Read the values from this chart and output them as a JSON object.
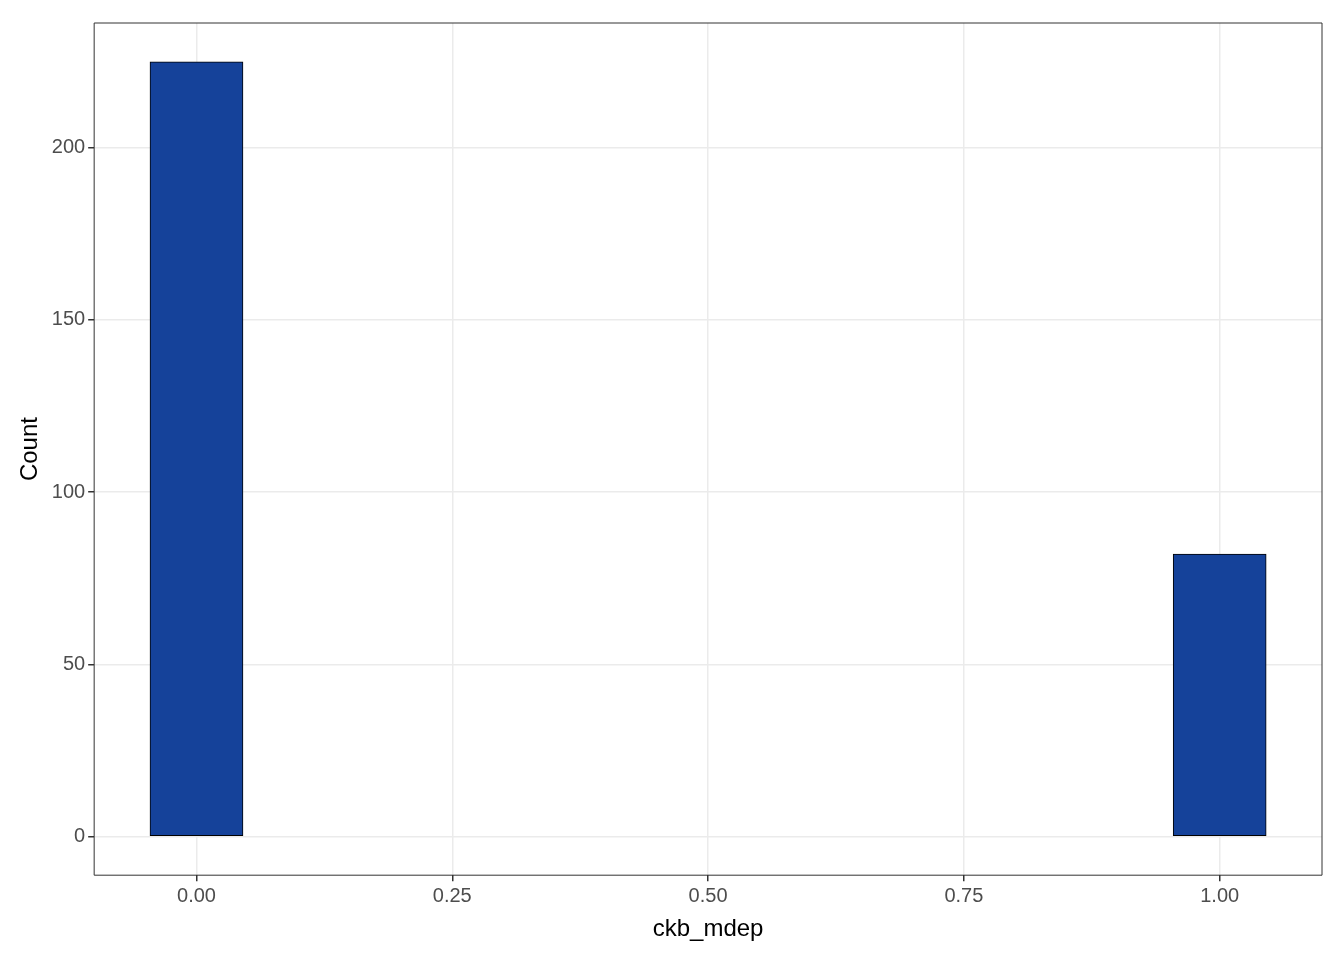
{
  "chart_data": {
    "type": "histogram",
    "xlabel": "ckb_mdep",
    "ylabel": "Count",
    "bins": [
      -0.0455,
      0.0455,
      0.1364,
      0.2273,
      0.3182,
      0.4091,
      0.5,
      0.5909,
      0.6818,
      0.7727,
      0.8636,
      0.9545,
      1.0455
    ],
    "values": [
      225,
      0,
      0,
      0,
      0,
      0,
      0,
      0,
      0,
      0,
      0,
      82
    ],
    "color": "#15429a",
    "xlim": [
      -0.1,
      1.1
    ],
    "xticks": [
      {
        "value": 0,
        "label": "0.00"
      },
      {
        "value": 0.25,
        "label": "0.25"
      },
      {
        "value": 0.5,
        "label": "0.50"
      },
      {
        "value": 0.75,
        "label": "0.75"
      },
      {
        "value": 1,
        "label": "1.00"
      }
    ],
    "ylim": [
      -11.25,
      236.25
    ],
    "yticks": [
      0,
      50,
      100,
      150,
      200
    ],
    "grid": true,
    "legend": false
  }
}
